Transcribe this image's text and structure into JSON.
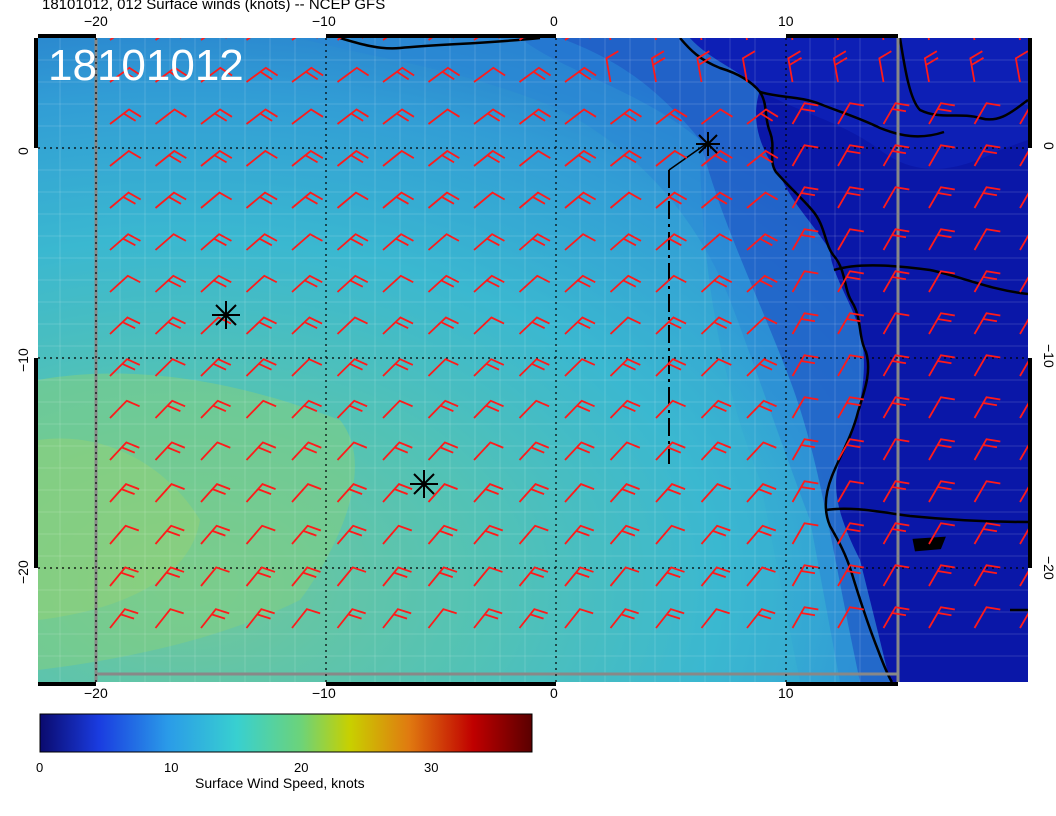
{
  "header": {
    "title": "18101012, 012 Surface winds (knots) -- NCEP GFS"
  },
  "map": {
    "stamp": "18101012",
    "lon_ticks": [
      "−20",
      "−10",
      "0",
      "10"
    ],
    "lat_ticks": [
      "0",
      "−10",
      "−20"
    ],
    "wind_barb_color": "#ff1a1a",
    "land_color": "#0a17a8",
    "ocean_colors": [
      "#2c7fd8",
      "#3aa6d8",
      "#46c4c8",
      "#6ccc9a",
      "#8fd07c"
    ]
  },
  "colorbar": {
    "title": "Surface Wind Speed, knots",
    "tick_labels": [
      "0",
      "10",
      "20",
      "30"
    ],
    "range": [
      0,
      38
    ],
    "colors": [
      "#0a0a6e",
      "#1a3ce0",
      "#2a9be8",
      "#38d0d0",
      "#6cd37a",
      "#c8d000",
      "#e07a10",
      "#c00000",
      "#5a0000"
    ]
  }
}
